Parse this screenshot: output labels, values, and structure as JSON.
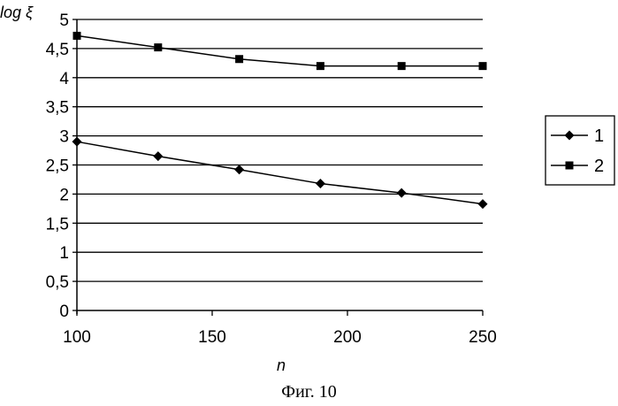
{
  "chart_data": {
    "type": "line",
    "ylabel": "log ξ",
    "xlabel": "n",
    "x": [
      100,
      130,
      160,
      190,
      220,
      250
    ],
    "xlim": [
      100,
      250
    ],
    "ylim": [
      0,
      5
    ],
    "xticks": [
      100,
      150,
      200,
      250
    ],
    "xtick_labels": [
      "100",
      "150",
      "200",
      "250"
    ],
    "yticks": [
      0,
      0.5,
      1,
      1.5,
      2,
      2.5,
      3,
      3.5,
      4,
      4.5,
      5
    ],
    "ytick_labels": [
      "0",
      "0,5",
      "1",
      "1,5",
      "2",
      "2,5",
      "3",
      "3,5",
      "4",
      "4,5",
      "5"
    ],
    "grid": true,
    "legend_position": "right",
    "series": [
      {
        "name": "1",
        "marker": "diamond",
        "values": [
          2.9,
          2.65,
          2.42,
          2.18,
          2.02,
          1.83
        ]
      },
      {
        "name": "2",
        "marker": "square",
        "values": [
          4.72,
          4.52,
          4.32,
          4.2,
          4.2,
          4.2
        ]
      }
    ],
    "colors": {
      "line": "#000000",
      "grid": "#000000"
    }
  },
  "caption": "Фиг. 10"
}
